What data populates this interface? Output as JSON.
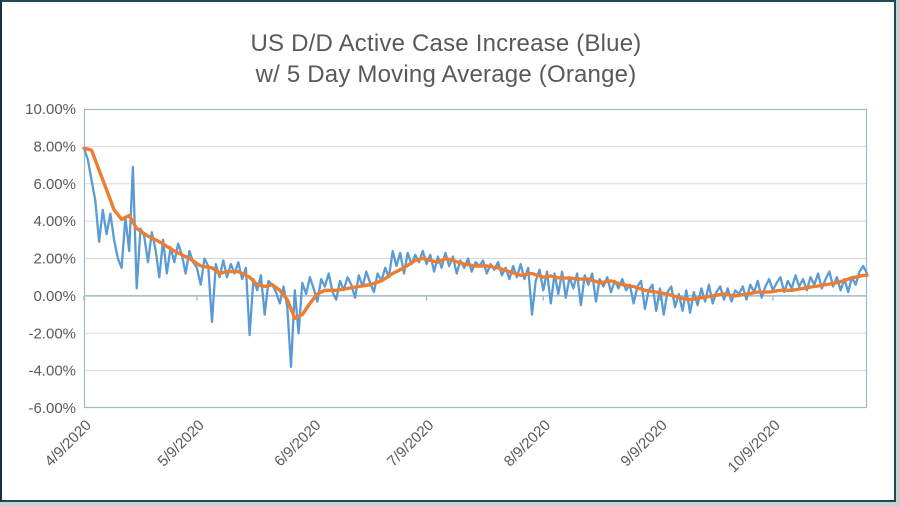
{
  "window": {
    "background": "#FFFFFF",
    "frame_border_color": "#1F4B57",
    "outer_gutter_color": "#CDD0D1"
  },
  "title": {
    "line1": "US D/D Active Case Increase (Blue)",
    "line2": "w/ 5 Day Moving Average (Orange)",
    "color": "#595959"
  },
  "chart_data": {
    "type": "line",
    "title": "US D/D Active Case Increase (Blue) w/ 5 Day Moving Average (Orange)",
    "grid": "horizontal",
    "legend_position": "none",
    "ylim": [
      -6,
      10
    ],
    "y_tick_step_percent": 2,
    "y_tick_labels": [
      "10.00%",
      "8.00%",
      "6.00%",
      "4.00%",
      "2.00%",
      "0.00%",
      "-2.00%",
      "-4.00%",
      "-6.00%"
    ],
    "y_tick_values": [
      10,
      8,
      6,
      4,
      2,
      0,
      -2,
      -4,
      -6
    ],
    "x_tick_labels": [
      "4/9/2020",
      "5/9/2020",
      "6/9/2020",
      "7/9/2020",
      "8/9/2020",
      "9/9/2020",
      "10/9/2020"
    ],
    "x_tick_day_index": [
      0,
      30,
      61,
      91,
      122,
      153,
      183
    ],
    "x_label_rotation_deg": -45,
    "axis_label_color": "#595959",
    "gridline_color": "#D9D9D9",
    "axis_line_color": "#9FB9C6",
    "series": [
      {
        "name": "US D/D Active Case Increase (Blue)",
        "color": "#5B9BD5",
        "stroke_width": 2.3,
        "unit": "percent",
        "values": [
          7.9,
          7.3,
          6.2,
          5.1,
          2.9,
          4.6,
          3.3,
          4.4,
          3.0,
          2.0,
          1.5,
          4.2,
          2.4,
          6.9,
          0.4,
          3.6,
          3.2,
          1.8,
          3.4,
          2.5,
          1.0,
          3.0,
          1.2,
          2.6,
          1.8,
          2.8,
          2.2,
          1.2,
          2.4,
          1.8,
          1.5,
          0.6,
          2.0,
          1.6,
          -1.4,
          1.7,
          1.0,
          1.9,
          1.0,
          1.7,
          1.2,
          1.8,
          0.9,
          1.5,
          -2.1,
          0.9,
          0.3,
          1.1,
          -1.0,
          0.8,
          0.6,
          0.2,
          -0.4,
          0.5,
          -0.6,
          -3.8,
          0.3,
          -2.0,
          0.7,
          0.1,
          1.0,
          0.4,
          -0.3,
          0.9,
          0.5,
          1.2,
          0.2,
          -0.2,
          0.8,
          0.3,
          1.0,
          0.6,
          -0.1,
          1.1,
          0.5,
          1.3,
          0.7,
          0.2,
          1.2,
          0.8,
          1.5,
          1.0,
          2.4,
          1.6,
          2.3,
          1.2,
          2.3,
          1.7,
          2.2,
          1.8,
          2.4,
          1.7,
          2.2,
          1.3,
          2.1,
          1.5,
          2.3,
          1.6,
          2.1,
          1.2,
          1.9,
          1.5,
          2.0,
          1.3,
          1.8,
          1.6,
          1.9,
          1.2,
          1.7,
          1.4,
          1.8,
          1.1,
          1.5,
          0.9,
          1.6,
          1.0,
          1.7,
          0.9,
          1.5,
          -1.0,
          0.8,
          1.4,
          0.3,
          1.3,
          -0.4,
          1.2,
          0.1,
          1.3,
          -0.1,
          1.0,
          0.4,
          1.2,
          -0.5,
          1.1,
          0.6,
          1.2,
          -0.3,
          0.9,
          0.5,
          1.0,
          0.2,
          0.8,
          0.4,
          0.9,
          0.3,
          0.6,
          -0.4,
          0.5,
          0.8,
          -0.7,
          0.3,
          0.6,
          -0.8,
          0.4,
          -1.0,
          0.2,
          0.5,
          -0.6,
          0.1,
          -0.8,
          0.3,
          -0.9,
          0.2,
          -0.5,
          0.4,
          -0.3,
          0.6,
          -0.4,
          0.2,
          0.5,
          -0.2,
          0.4,
          -0.3,
          0.3,
          0.1,
          0.5,
          -0.2,
          0.6,
          0.2,
          0.8,
          -0.1,
          0.5,
          0.9,
          0.3,
          0.7,
          1.0,
          0.2,
          0.8,
          0.4,
          1.1,
          0.5,
          0.9,
          0.3,
          1.0,
          0.6,
          1.2,
          0.4,
          0.9,
          1.3,
          0.5,
          1.0,
          0.3,
          0.9,
          0.2,
          1.0,
          0.6,
          1.3,
          1.6,
          1.2
        ]
      },
      {
        "name": "5 Day Moving Average (Orange)",
        "color": "#ED7D31",
        "stroke_width": 3.4,
        "unit": "percent",
        "values": [
          7.9,
          7.85,
          7.8,
          7.27,
          6.73,
          6.2,
          5.67,
          5.13,
          4.6,
          4.35,
          4.1,
          4.2,
          4.3,
          3.95,
          3.6,
          3.47,
          3.33,
          3.2,
          3.1,
          3.0,
          2.9,
          2.78,
          2.65,
          2.53,
          2.4,
          2.3,
          2.2,
          2.1,
          2.0,
          1.87,
          1.73,
          1.6,
          1.57,
          1.53,
          1.5,
          1.35,
          1.2,
          1.25,
          1.3,
          1.3,
          1.3,
          1.3,
          1.2,
          1.1,
          1.0,
          0.8,
          0.6,
          0.55,
          0.5,
          0.55,
          0.6,
          0.45,
          0.3,
          0.05,
          -0.2,
          -0.7,
          -1.2,
          -1.1,
          -1.0,
          -0.7,
          -0.4,
          -0.15,
          0.1,
          0.2,
          0.3,
          0.3,
          0.3,
          0.3,
          0.33,
          0.37,
          0.4,
          0.43,
          0.47,
          0.5,
          0.53,
          0.57,
          0.6,
          0.67,
          0.73,
          0.8,
          0.93,
          1.07,
          1.2,
          1.3,
          1.4,
          1.5,
          1.63,
          1.77,
          1.9,
          1.95,
          2.0,
          1.95,
          1.9,
          1.85,
          1.8,
          1.9,
          2.0,
          1.95,
          1.9,
          1.83,
          1.77,
          1.7,
          1.67,
          1.63,
          1.6,
          1.6,
          1.6,
          1.6,
          1.57,
          1.53,
          1.5,
          1.43,
          1.37,
          1.3,
          1.23,
          1.17,
          1.1,
          1.13,
          1.17,
          1.2,
          1.13,
          1.07,
          1.0,
          1.03,
          1.07,
          1.0,
          0.97,
          0.95,
          0.95,
          0.95,
          0.93,
          0.9,
          0.9,
          0.9,
          0.9,
          0.83,
          0.77,
          0.7,
          0.73,
          0.77,
          0.8,
          0.73,
          0.67,
          0.6,
          0.57,
          0.53,
          0.5,
          0.43,
          0.37,
          0.3,
          0.27,
          0.23,
          0.2,
          0.17,
          0.13,
          0.1,
          0.03,
          -0.03,
          -0.1,
          -0.13,
          -0.17,
          -0.2,
          -0.17,
          -0.13,
          -0.1,
          -0.07,
          -0.03,
          0.0,
          0.03,
          0.07,
          0.1,
          0.07,
          0.03,
          0.0,
          0.03,
          0.07,
          0.1,
          0.13,
          0.17,
          0.2,
          0.2,
          0.2,
          0.2,
          0.23,
          0.27,
          0.3,
          0.3,
          0.3,
          0.3,
          0.33,
          0.37,
          0.4,
          0.43,
          0.47,
          0.5,
          0.53,
          0.57,
          0.6,
          0.63,
          0.67,
          0.7,
          0.77,
          0.83,
          0.9,
          0.97,
          1.0,
          1.05,
          1.1,
          1.1
        ]
      }
    ]
  }
}
